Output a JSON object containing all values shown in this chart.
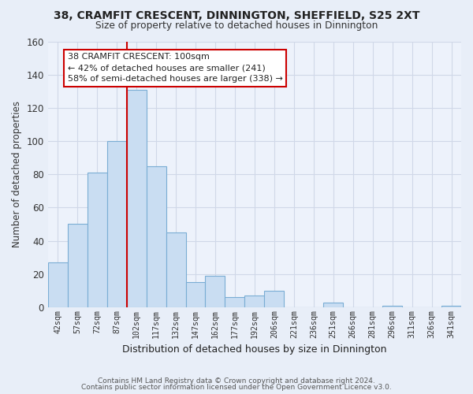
{
  "title": "38, CRAMFIT CRESCENT, DINNINGTON, SHEFFIELD, S25 2XT",
  "subtitle": "Size of property relative to detached houses in Dinnington",
  "xlabel": "Distribution of detached houses by size in Dinnington",
  "ylabel": "Number of detached properties",
  "bar_labels": [
    "42sqm",
    "57sqm",
    "72sqm",
    "87sqm",
    "102sqm",
    "117sqm",
    "132sqm",
    "147sqm",
    "162sqm",
    "177sqm",
    "192sqm",
    "206sqm",
    "221sqm",
    "236sqm",
    "251sqm",
    "266sqm",
    "281sqm",
    "296sqm",
    "311sqm",
    "326sqm",
    "341sqm"
  ],
  "bar_values": [
    27,
    50,
    81,
    100,
    131,
    85,
    45,
    15,
    19,
    6,
    7,
    10,
    0,
    0,
    3,
    0,
    0,
    1,
    0,
    0,
    1
  ],
  "bar_color": "#c9ddf2",
  "bar_edge_color": "#7aadd4",
  "ylim": [
    0,
    160
  ],
  "yticks": [
    0,
    20,
    40,
    60,
    80,
    100,
    120,
    140,
    160
  ],
  "property_line_color": "#cc0000",
  "annotation_title": "38 CRAMFIT CRESCENT: 100sqm",
  "annotation_line1": "← 42% of detached houses are smaller (241)",
  "annotation_line2": "58% of semi-detached houses are larger (338) →",
  "annotation_box_color": "#ffffff",
  "annotation_box_edge": "#cc0000",
  "footer_line1": "Contains HM Land Registry data © Crown copyright and database right 2024.",
  "footer_line2": "Contains public sector information licensed under the Open Government Licence v3.0.",
  "background_color": "#e8eef8",
  "grid_color": "#d0d8e8",
  "plot_bg_color": "#edf2fb"
}
